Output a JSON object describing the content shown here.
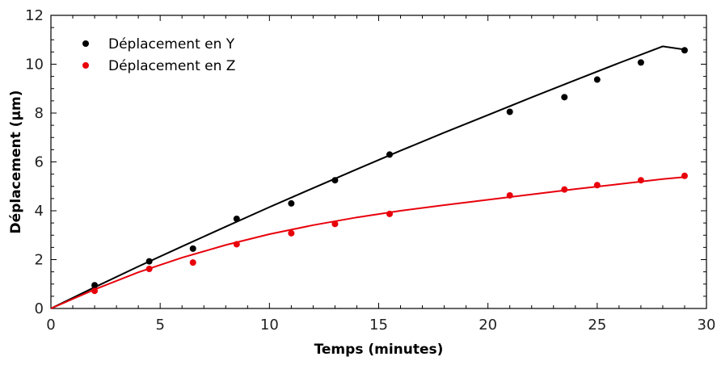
{
  "chart_data": {
    "type": "scatter",
    "xlabel": "Temps (minutes)",
    "ylabel": "Déplacement (µm)",
    "xlim": [
      0,
      30
    ],
    "ylim": [
      0,
      12
    ],
    "xticks": [
      0,
      5,
      10,
      15,
      20,
      25,
      30
    ],
    "yticks": [
      0,
      2,
      4,
      6,
      8,
      10,
      12
    ],
    "legend_position": "top-left",
    "grid": false,
    "series": [
      {
        "name": "Déplacement en Y",
        "color": "#000000",
        "x": [
          2,
          4.5,
          6.5,
          8.5,
          11,
          13,
          15.5,
          21,
          23.5,
          25,
          27,
          29
        ],
        "y": [
          0.95,
          1.93,
          2.45,
          3.67,
          4.3,
          5.25,
          6.3,
          8.05,
          8.65,
          9.37,
          10.07,
          10.57
        ],
        "fit_x": [
          0,
          2,
          4,
          6,
          8,
          10,
          12,
          14,
          16,
          18,
          20,
          22,
          24,
          26,
          28,
          29
        ],
        "fit_y": [
          0,
          0.87,
          1.72,
          2.54,
          3.35,
          4.15,
          4.93,
          5.7,
          6.46,
          7.2,
          7.92,
          8.64,
          9.35,
          10.05,
          10.73,
          10.6
        ]
      },
      {
        "name": "Déplacement en Z",
        "color": "#e8000b",
        "x": [
          2,
          4.5,
          6.5,
          8.5,
          11,
          13,
          15.5,
          21,
          23.5,
          25,
          27,
          29
        ],
        "y": [
          0.72,
          1.62,
          1.88,
          2.63,
          3.08,
          3.46,
          3.87,
          4.63,
          4.87,
          5.05,
          5.25,
          5.43
        ],
        "fit_x": [
          0,
          2,
          4,
          6,
          8,
          10,
          12,
          14,
          16,
          18,
          20,
          22,
          24,
          26,
          28,
          29
        ],
        "fit_y": [
          0,
          0.78,
          1.48,
          2.08,
          2.6,
          3.04,
          3.41,
          3.73,
          4.0,
          4.23,
          4.45,
          4.67,
          4.89,
          5.09,
          5.3,
          5.38
        ]
      }
    ]
  }
}
